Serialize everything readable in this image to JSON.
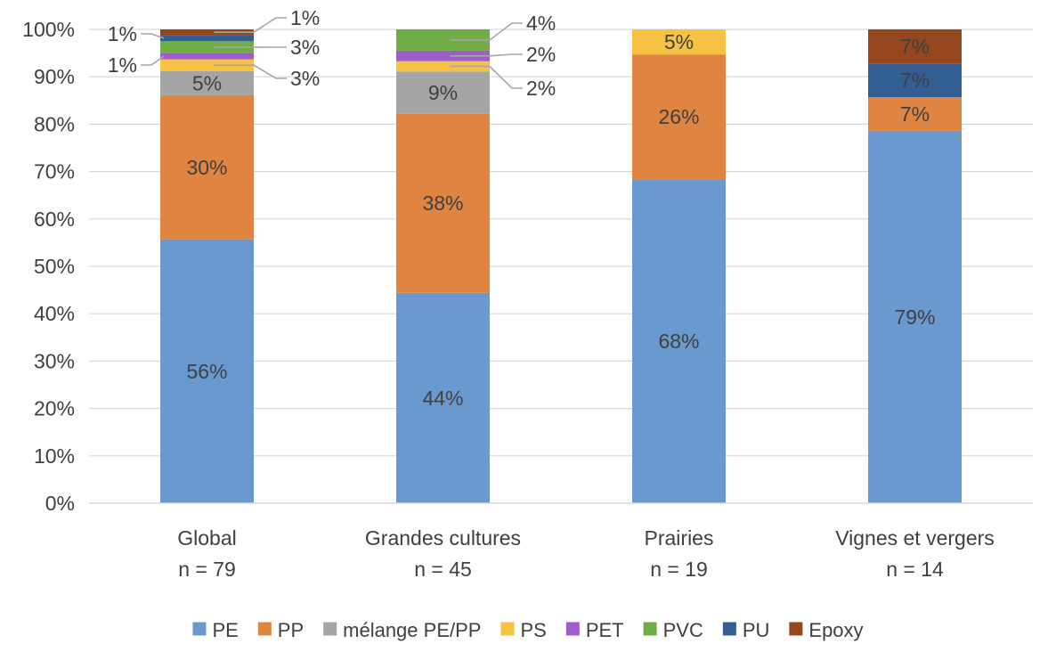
{
  "chart_data": {
    "type": "bar",
    "stacked": true,
    "title": "",
    "xlabel": "",
    "ylabel": "",
    "ylim": [
      0,
      100
    ],
    "yticks": [
      "0%",
      "10%",
      "20%",
      "30%",
      "40%",
      "50%",
      "60%",
      "70%",
      "80%",
      "90%",
      "100%"
    ],
    "categories": [
      "Global",
      "Grandes cultures",
      "Prairies",
      "Vignes et vergers"
    ],
    "category_counts": [
      "n = 79",
      "n = 45",
      "n = 19",
      "n = 14"
    ],
    "series": [
      {
        "name": "PE",
        "color": "#6a99d0",
        "values": [
          55.7,
          44.4,
          68.4,
          78.6
        ],
        "labels": [
          "56%",
          "44%",
          "68%",
          "79%"
        ]
      },
      {
        "name": "PP",
        "color": "#e08441",
        "values": [
          30.4,
          37.8,
          26.3,
          7.1
        ],
        "labels": [
          "30%",
          "38%",
          "26%",
          "7%"
        ]
      },
      {
        "name": "mélange PE/PP",
        "color": "#a5a5a5",
        "values": [
          5.1,
          8.9,
          0,
          0
        ],
        "labels": [
          "5%",
          "9%",
          "",
          ""
        ]
      },
      {
        "name": "PS",
        "color": "#f5c242",
        "values": [
          2.5,
          2.2,
          5.3,
          0
        ],
        "labels": [
          "3%",
          "2%",
          "5%",
          ""
        ]
      },
      {
        "name": "PET",
        "color": "#9e5ccd",
        "values": [
          1.3,
          2.2,
          0,
          0
        ],
        "labels": [
          "1%",
          "2%",
          "",
          ""
        ]
      },
      {
        "name": "PVC",
        "color": "#70ad47",
        "values": [
          2.5,
          4.5,
          0,
          0
        ],
        "labels": [
          "3%",
          "4%",
          "",
          ""
        ]
      },
      {
        "name": "PU",
        "color": "#335e93",
        "values": [
          1.3,
          0,
          0,
          7.1
        ],
        "labels": [
          "1%",
          "",
          "",
          "7%"
        ]
      },
      {
        "name": "Epoxy",
        "color": "#94471f",
        "values": [
          1.2,
          0,
          0,
          7.2
        ],
        "labels": [
          "1%",
          "",
          "",
          "7%"
        ]
      }
    ]
  }
}
